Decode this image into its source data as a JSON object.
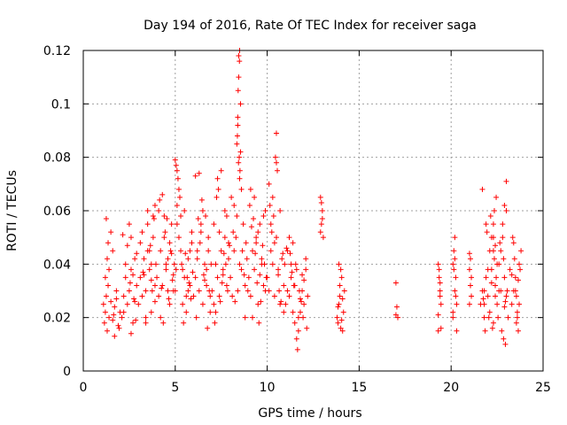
{
  "chart_data": {
    "type": "scatter",
    "title": "Day 194 of 2016, Rate Of TEC Index for receiver saga",
    "xlabel": "GPS time / hours",
    "ylabel": "ROTI / TECUs",
    "xlim": [
      0,
      25
    ],
    "ylim": [
      0,
      0.12
    ],
    "xticks": [
      0,
      5,
      10,
      15,
      20,
      25
    ],
    "xtick_labels": [
      "0",
      "5",
      "10",
      "15",
      "20",
      "25"
    ],
    "yticks": [
      0,
      0.02,
      0.04,
      0.06,
      0.08,
      0.1,
      0.12
    ],
    "ytick_labels": [
      "0",
      "0.02",
      "0.04",
      "0.06",
      "0.08",
      "0.1",
      "0.12"
    ],
    "grid": true,
    "marker": "+",
    "series": [
      {
        "name": "ROTI",
        "color": "#ff0000",
        "x": [
          1.1,
          1.15,
          1.2,
          1.25,
          1.3,
          1.35,
          1.4,
          1.5,
          1.6,
          1.7,
          1.8,
          1.9,
          2.0,
          1.2,
          1.3,
          1.4,
          1.6,
          1.8,
          1.25,
          1.5,
          1.7,
          1.95,
          1.35,
          1.65,
          2.1,
          2.2,
          2.3,
          2.4,
          2.5,
          2.6,
          2.7,
          2.8,
          2.9,
          2.2,
          2.4,
          2.6,
          2.8,
          2.5,
          2.7,
          2.9,
          2.3,
          2.6,
          2.85,
          2.15,
          2.55,
          2.75,
          3.0,
          3.1,
          3.2,
          3.3,
          3.4,
          3.5,
          3.6,
          3.7,
          3.8,
          3.9,
          3.1,
          3.3,
          3.5,
          3.7,
          3.9,
          3.2,
          3.4,
          3.6,
          3.8,
          3.5,
          3.7,
          3.9,
          3.4,
          3.75,
          3.95,
          3.25,
          3.65,
          3.85,
          4.0,
          4.1,
          4.2,
          4.3,
          4.4,
          4.5,
          4.6,
          4.7,
          4.8,
          4.9,
          4.1,
          4.3,
          4.5,
          4.7,
          4.9,
          4.2,
          4.4,
          4.6,
          4.8,
          4.15,
          4.45,
          4.65,
          4.85,
          4.35,
          4.75,
          4.55,
          4.95,
          4.25,
          5.0,
          5.05,
          5.1,
          5.15,
          5.2,
          5.3,
          5.4,
          5.5,
          5.6,
          5.7,
          5.8,
          5.9,
          5.1,
          5.2,
          5.4,
          5.6,
          5.8,
          5.0,
          5.1,
          5.05,
          5.3,
          5.5,
          5.7,
          5.9,
          5.35,
          5.65,
          5.85,
          5.45,
          5.25,
          5.75,
          5.55,
          5.95,
          6.0,
          6.1,
          6.2,
          6.3,
          6.4,
          6.5,
          6.6,
          6.7,
          6.8,
          6.9,
          6.1,
          6.3,
          6.5,
          6.7,
          6.9,
          6.2,
          6.4,
          6.6,
          6.8,
          6.55,
          6.65,
          6.85,
          6.15,
          6.35,
          6.75,
          6.45,
          6.95,
          6.25,
          7.0,
          7.1,
          7.2,
          7.3,
          7.4,
          7.5,
          7.6,
          7.7,
          7.8,
          7.9,
          7.1,
          7.3,
          7.5,
          7.7,
          7.9,
          7.2,
          7.4,
          7.6,
          7.8,
          7.35,
          7.85,
          7.65,
          7.15,
          7.45,
          7.75,
          7.25,
          7.55,
          7.95,
          8.0,
          8.1,
          8.2,
          8.3,
          8.4,
          8.5,
          8.6,
          8.7,
          8.8,
          8.9,
          8.35,
          8.4,
          8.45,
          8.5,
          8.55,
          8.38,
          8.42,
          8.48,
          8.52,
          8.45,
          8.5,
          8.4,
          8.55,
          8.44,
          8.49,
          8.2,
          8.35,
          8.6,
          8.8,
          8.15,
          8.25,
          8.65,
          8.75,
          8.05,
          8.95,
          8.85,
          9.0,
          9.1,
          9.2,
          9.3,
          9.4,
          9.5,
          9.6,
          9.7,
          9.8,
          9.9,
          9.1,
          9.3,
          9.5,
          9.7,
          9.9,
          9.2,
          9.4,
          9.6,
          9.8,
          9.05,
          9.35,
          9.65,
          9.85,
          9.15,
          9.45,
          9.75,
          9.25,
          9.55,
          9.95,
          10.0,
          10.1,
          10.2,
          10.3,
          10.4,
          10.5,
          10.6,
          10.7,
          10.8,
          10.9,
          10.1,
          10.3,
          10.5,
          10.7,
          10.9,
          10.2,
          10.4,
          10.6,
          10.45,
          10.5,
          10.55,
          10.25,
          10.35,
          10.65,
          10.85,
          10.15,
          10.75,
          10.95,
          11.0,
          11.1,
          11.2,
          11.3,
          11.4,
          11.5,
          11.6,
          11.7,
          11.8,
          11.9,
          12.0,
          12.1,
          12.2,
          11.1,
          11.3,
          11.5,
          11.7,
          11.9,
          12.1,
          11.2,
          11.4,
          11.6,
          11.8,
          12.0,
          11.25,
          11.45,
          11.65,
          11.85,
          12.15,
          11.55,
          11.35,
          11.95,
          11.05,
          11.75,
          12.9,
          13.0,
          12.95,
          13.05,
          12.95,
          13.0,
          12.9,
          13.8,
          13.9,
          14.0,
          14.1,
          14.2,
          13.85,
          13.95,
          14.05,
          14.15,
          13.9,
          14.0,
          13.95,
          14.1,
          13.85,
          14.05,
          17.0,
          17.05,
          17.1,
          17.0,
          19.3,
          19.35,
          19.4,
          19.45,
          19.3,
          19.4,
          19.35,
          19.45,
          19.3,
          19.4,
          20.1,
          20.15,
          20.2,
          20.25,
          20.3,
          20.1,
          20.2,
          20.3,
          20.15,
          20.25,
          20.2,
          20.1,
          21.0,
          21.05,
          21.1,
          21.0,
          21.05,
          21.1,
          21.0,
          21.6,
          21.7,
          21.8,
          21.9,
          22.0,
          22.1,
          22.2,
          22.3,
          22.4,
          21.7,
          21.9,
          22.1,
          22.3,
          21.8,
          22.0,
          22.2,
          22.4,
          22.5,
          21.85,
          22.05,
          22.25,
          22.45,
          22.35,
          22.15,
          21.95,
          21.75,
          22.45,
          22.35,
          22.4,
          22.3,
          21.8,
          22.3,
          22.2,
          22.5,
          22.6,
          22.7,
          22.8,
          22.9,
          23.0,
          23.1,
          23.2,
          22.6,
          22.8,
          23.0,
          22.7,
          22.9,
          22.55,
          22.75,
          22.95,
          22.85,
          23.0,
          22.9,
          23.05,
          22.65,
          22.85,
          22.95,
          23.3,
          23.4,
          23.5,
          23.6,
          23.7,
          23.8,
          23.35,
          23.55,
          23.75,
          23.45,
          23.65,
          23.4,
          23.6,
          23.3,
          23.5,
          23.7,
          23.55,
          23.65
        ],
        "y": [
          0.025,
          0.018,
          0.022,
          0.028,
          0.015,
          0.032,
          0.02,
          0.026,
          0.019,
          0.024,
          0.03,
          0.017,
          0.022,
          0.035,
          0.042,
          0.038,
          0.045,
          0.027,
          0.057,
          0.052,
          0.013,
          0.016,
          0.048,
          0.021,
          0.02,
          0.028,
          0.035,
          0.025,
          0.03,
          0.038,
          0.018,
          0.042,
          0.032,
          0.022,
          0.047,
          0.05,
          0.026,
          0.055,
          0.036,
          0.044,
          0.04,
          0.014,
          0.019,
          0.051,
          0.033,
          0.027,
          0.025,
          0.035,
          0.028,
          0.042,
          0.03,
          0.045,
          0.038,
          0.022,
          0.05,
          0.032,
          0.048,
          0.036,
          0.055,
          0.04,
          0.026,
          0.052,
          0.02,
          0.045,
          0.058,
          0.06,
          0.034,
          0.062,
          0.018,
          0.03,
          0.04,
          0.037,
          0.047,
          0.057,
          0.035,
          0.028,
          0.045,
          0.032,
          0.05,
          0.038,
          0.042,
          0.025,
          0.055,
          0.03,
          0.06,
          0.066,
          0.04,
          0.048,
          0.036,
          0.02,
          0.058,
          0.03,
          0.044,
          0.064,
          0.052,
          0.027,
          0.034,
          0.018,
          0.045,
          0.057,
          0.04,
          0.031,
          0.03,
          0.038,
          0.075,
          0.072,
          0.068,
          0.045,
          0.025,
          0.035,
          0.028,
          0.042,
          0.032,
          0.048,
          0.055,
          0.05,
          0.038,
          0.022,
          0.045,
          0.079,
          0.062,
          0.077,
          0.058,
          0.06,
          0.03,
          0.052,
          0.04,
          0.035,
          0.027,
          0.018,
          0.065,
          0.033,
          0.044,
          0.037,
          0.028,
          0.035,
          0.045,
          0.03,
          0.055,
          0.025,
          0.04,
          0.032,
          0.05,
          0.022,
          0.073,
          0.074,
          0.06,
          0.038,
          0.028,
          0.042,
          0.052,
          0.034,
          0.045,
          0.036,
          0.058,
          0.03,
          0.02,
          0.048,
          0.016,
          0.064,
          0.04,
          0.057,
          0.03,
          0.025,
          0.04,
          0.035,
          0.028,
          0.045,
          0.038,
          0.05,
          0.032,
          0.042,
          0.055,
          0.072,
          0.075,
          0.06,
          0.048,
          0.022,
          0.052,
          0.036,
          0.058,
          0.068,
          0.03,
          0.044,
          0.018,
          0.026,
          0.04,
          0.065,
          0.033,
          0.047,
          0.035,
          0.028,
          0.045,
          0.05,
          0.03,
          0.04,
          0.038,
          0.055,
          0.032,
          0.042,
          0.085,
          0.095,
          0.11,
          0.12,
          0.1,
          0.088,
          0.105,
          0.08,
          0.075,
          0.118,
          0.072,
          0.092,
          0.082,
          0.078,
          0.116,
          0.062,
          0.058,
          0.068,
          0.02,
          0.052,
          0.026,
          0.045,
          0.036,
          0.065,
          0.03,
          0.048,
          0.035,
          0.028,
          0.045,
          0.038,
          0.05,
          0.025,
          0.055,
          0.04,
          0.032,
          0.06,
          0.068,
          0.065,
          0.052,
          0.042,
          0.03,
          0.02,
          0.048,
          0.036,
          0.058,
          0.062,
          0.044,
          0.026,
          0.04,
          0.054,
          0.033,
          0.047,
          0.057,
          0.018,
          0.035,
          0.035,
          0.03,
          0.045,
          0.04,
          0.028,
          0.05,
          0.038,
          0.025,
          0.042,
          0.032,
          0.07,
          0.065,
          0.078,
          0.06,
          0.022,
          0.055,
          0.048,
          0.036,
          0.08,
          0.089,
          0.075,
          0.052,
          0.058,
          0.03,
          0.044,
          0.062,
          0.026,
          0.04,
          0.025,
          0.03,
          0.028,
          0.035,
          0.022,
          0.032,
          0.038,
          0.02,
          0.027,
          0.03,
          0.025,
          0.042,
          0.028,
          0.045,
          0.04,
          0.018,
          0.015,
          0.036,
          0.038,
          0.05,
          0.048,
          0.012,
          0.022,
          0.034,
          0.044,
          0.032,
          0.008,
          0.026,
          0.016,
          0.04,
          0.037,
          0.02,
          0.046,
          0.03,
          0.065,
          0.06,
          0.055,
          0.05,
          0.063,
          0.057,
          0.052,
          0.02,
          0.025,
          0.038,
          0.015,
          0.03,
          0.018,
          0.028,
          0.035,
          0.022,
          0.04,
          0.016,
          0.032,
          0.027,
          0.024,
          0.019,
          0.033,
          0.024,
          0.02,
          0.021,
          0.04,
          0.035,
          0.03,
          0.025,
          0.015,
          0.028,
          0.038,
          0.016,
          0.021,
          0.033,
          0.04,
          0.045,
          0.05,
          0.035,
          0.025,
          0.02,
          0.03,
          0.015,
          0.038,
          0.028,
          0.042,
          0.022,
          0.038,
          0.032,
          0.028,
          0.025,
          0.042,
          0.035,
          0.044,
          0.025,
          0.03,
          0.02,
          0.035,
          0.028,
          0.022,
          0.038,
          0.018,
          0.032,
          0.068,
          0.055,
          0.045,
          0.05,
          0.025,
          0.038,
          0.033,
          0.028,
          0.04,
          0.015,
          0.02,
          0.016,
          0.035,
          0.06,
          0.058,
          0.052,
          0.027,
          0.065,
          0.042,
          0.047,
          0.055,
          0.03,
          0.045,
          0.05,
          0.025,
          0.03,
          0.045,
          0.05,
          0.035,
          0.028,
          0.02,
          0.038,
          0.04,
          0.055,
          0.06,
          0.03,
          0.024,
          0.02,
          0.015,
          0.01,
          0.012,
          0.071,
          0.062,
          0.03,
          0.048,
          0.042,
          0.026,
          0.025,
          0.03,
          0.035,
          0.02,
          0.04,
          0.045,
          0.05,
          0.028,
          0.038,
          0.042,
          0.015,
          0.048,
          0.022,
          0.036,
          0.03,
          0.025,
          0.018,
          0.034
        ]
      }
    ]
  }
}
